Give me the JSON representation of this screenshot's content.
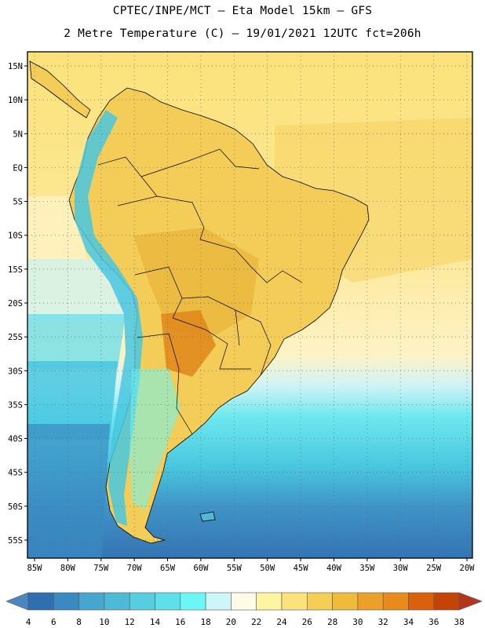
{
  "header": {
    "title_line1": "CPTEC/INPE/MCT –  Eta Model 15km – GFS",
    "title_line2": "2 Metre Temperature (C) – 19/01/2021 12UTC fct=206h"
  },
  "map": {
    "lat_labels": [
      "15N",
      "10N",
      "5N",
      "EQ",
      "5S",
      "10S",
      "15S",
      "20S",
      "25S",
      "30S",
      "35S",
      "40S",
      "45S",
      "50S",
      "55S"
    ],
    "lon_labels": [
      "85W",
      "80W",
      "75W",
      "70W",
      "65W",
      "60W",
      "55W",
      "50W",
      "45W",
      "40W",
      "35W",
      "30W",
      "25W",
      "20W"
    ],
    "lon_range": [
      -85,
      -20
    ],
    "lat_range": [
      -58,
      16
    ]
  },
  "colorbar": {
    "labels": [
      "4",
      "6",
      "8",
      "10",
      "12",
      "14",
      "16",
      "18",
      "20",
      "22",
      "24",
      "26",
      "28",
      "30",
      "32",
      "34",
      "36",
      "38"
    ],
    "colors": [
      "#4a86c0",
      "#2f6fb0",
      "#3a8ac2",
      "#46a6d0",
      "#4fbad8",
      "#55cfe0",
      "#5ee0ea",
      "#6cf6f6",
      "#ccf6f8",
      "#fffbe6",
      "#fef5a0",
      "#fbe27a",
      "#f5cf55",
      "#eebc3a",
      "#eba02a",
      "#e98a1c",
      "#d9610c",
      "#c44408",
      "#b3361a"
    ]
  }
}
